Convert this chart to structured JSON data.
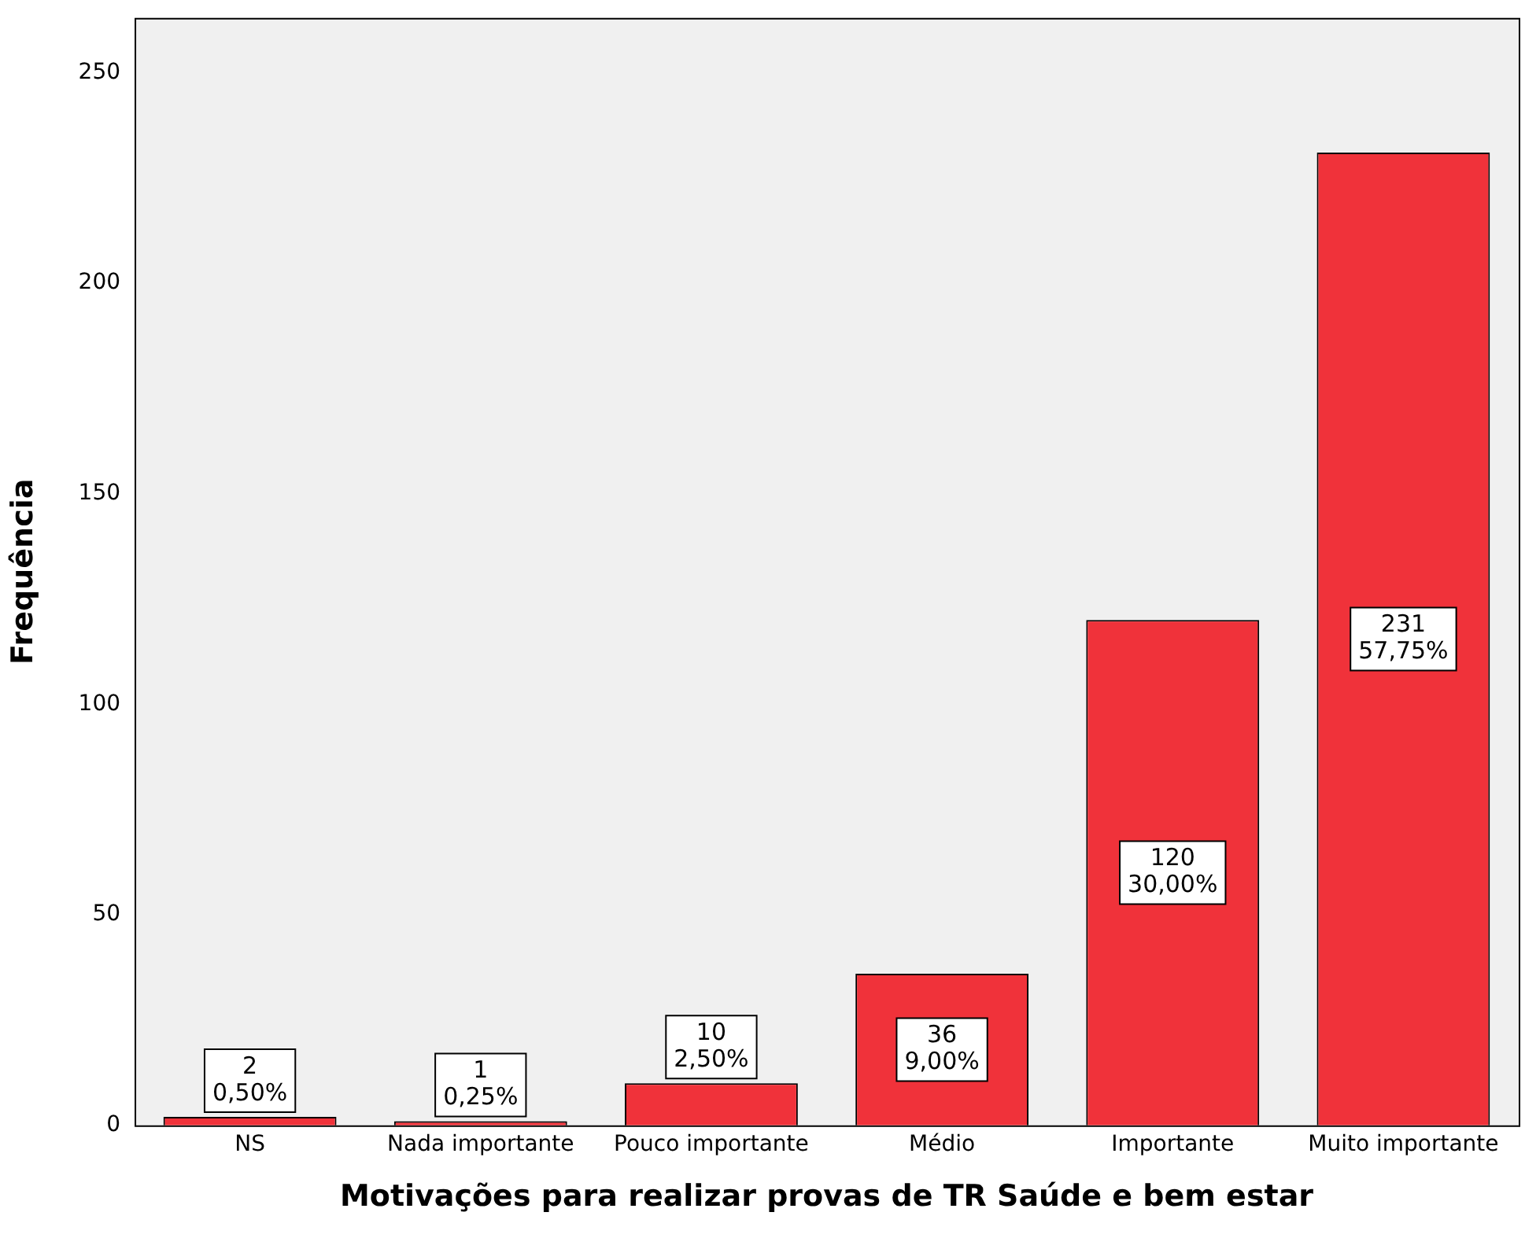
{
  "chart_data": {
    "type": "bar",
    "xlabel": "Motivações para realizar provas de TR Saúde e bem estar",
    "ylabel": "Frequência",
    "categories": [
      "NS",
      "Nada importante",
      "Pouco importante",
      "Médio",
      "Importante",
      "Muito importante"
    ],
    "values": [
      2,
      1,
      10,
      36,
      120,
      231
    ],
    "value_labels": [
      "2\n0,50%",
      "1\n0,25%",
      "10\n2,50%",
      "36\n9,00%",
      "120\n30,00%",
      "231\n57,75%"
    ],
    "color": "#f0323a",
    "ylim": [
      0,
      263
    ],
    "yticks": [
      0,
      50,
      100,
      150,
      200,
      250
    ],
    "grid": false,
    "legend": false
  }
}
